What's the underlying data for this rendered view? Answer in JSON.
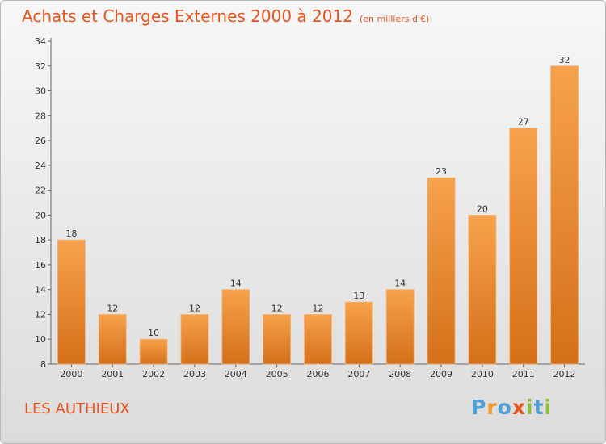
{
  "title": "Achats et Charges Externes 2000 à 2012",
  "unit_note": "(en milliers d'€)",
  "place_name": "LES AUTHIEUX",
  "logo": {
    "text": "Proxiti",
    "letters": [
      {
        "ch": "P",
        "color": "#4f9fd8"
      },
      {
        "ch": "r",
        "color": "#f09a2a"
      },
      {
        "ch": "o",
        "color": "#4f9fd8"
      },
      {
        "ch": "x",
        "color": "#e8541e"
      },
      {
        "ch": "i",
        "color": "#8cbf3f"
      },
      {
        "ch": "t",
        "color": "#4f9fd8"
      },
      {
        "ch": "i",
        "color": "#8cbf3f"
      }
    ]
  },
  "colors": {
    "title": "#e8541e",
    "bar_top": "#f7a24c",
    "bar_bottom": "#d5701a",
    "text": "#333333"
  },
  "chart_data": {
    "type": "bar",
    "title": "Achats et Charges Externes 2000 à 2012",
    "subtitle": "(en milliers d'€)",
    "categories": [
      "2000",
      "2001",
      "2002",
      "2003",
      "2004",
      "2005",
      "2006",
      "2007",
      "2008",
      "2009",
      "2010",
      "2011",
      "2012"
    ],
    "values": [
      18,
      12,
      10,
      12,
      14,
      12,
      12,
      13,
      14,
      23,
      20,
      27,
      32
    ],
    "ylim": [
      8,
      34
    ],
    "yticks": [
      8,
      10,
      12,
      14,
      16,
      18,
      20,
      22,
      24,
      26,
      28,
      30,
      32,
      34
    ],
    "grid": false,
    "legend": "none"
  }
}
